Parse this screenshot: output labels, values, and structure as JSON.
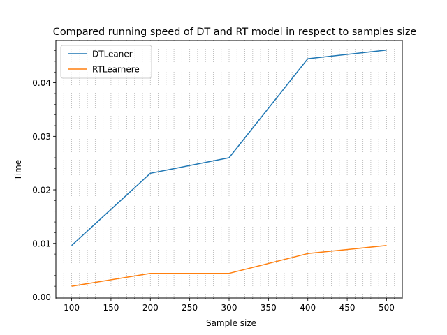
{
  "chart_data": {
    "type": "line",
    "title": "Compared running speed of DT and RT model in respect to samples size",
    "xlabel": "Sample size",
    "ylabel": "Time",
    "xlim": [
      80,
      520
    ],
    "ylim": [
      -0.0002,
      0.0479
    ],
    "x_ticks": [
      100,
      150,
      200,
      250,
      300,
      350,
      400,
      450,
      500
    ],
    "x_tick_labels": [
      "100",
      "150",
      "200",
      "250",
      "300",
      "350",
      "400",
      "450",
      "500"
    ],
    "y_ticks": [
      0.0,
      0.01,
      0.02,
      0.03,
      0.04
    ],
    "y_tick_labels": [
      "0.00",
      "0.01",
      "0.02",
      "0.03",
      "0.04"
    ],
    "x_minor_step": 10,
    "grid": "vertical minor dotted",
    "legend_position": "top-left",
    "x": [
      100,
      200,
      300,
      400,
      500
    ],
    "series": [
      {
        "name": "DTLeaner",
        "color": "#1f77b4",
        "values": [
          0.0096,
          0.0231,
          0.026,
          0.0445,
          0.0461
        ]
      },
      {
        "name": "RTLearnere",
        "color": "#ff7f0e",
        "values": [
          0.002,
          0.0044,
          0.0044,
          0.0081,
          0.0096
        ]
      }
    ]
  }
}
